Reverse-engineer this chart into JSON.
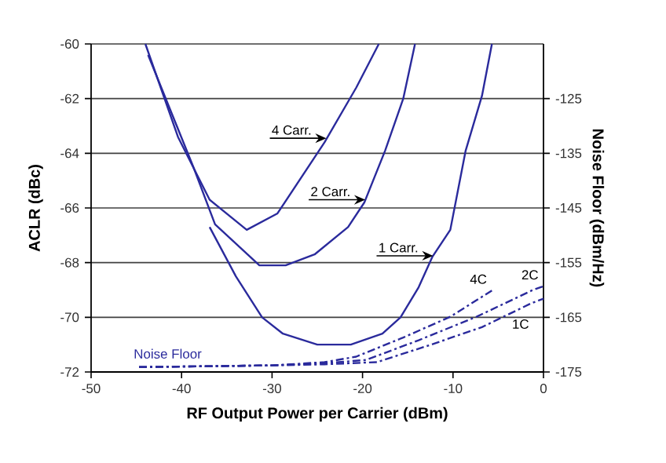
{
  "chart_data": {
    "type": "line",
    "xlabel": "RF Output Power per Carrier (dBm)",
    "ylabel": "ACLR (dBc)",
    "y2label": "Noise Floor (dBm/Hz)",
    "xlim": [
      -50,
      0
    ],
    "xticks": [
      -50,
      -40,
      -30,
      -20,
      -10,
      0
    ],
    "ylim": [
      -72,
      -60
    ],
    "yticks": [
      -72,
      -70,
      -68,
      -66,
      -64,
      -62,
      -60
    ],
    "y2lim": [
      -175,
      -115
    ],
    "y2ticks": [
      -175,
      -165,
      -155,
      -145,
      -135,
      -125
    ],
    "grid": "y",
    "marker": "none",
    "series": [
      {
        "color": "#2a2a9c",
        "line_style": "solid",
        "x": [
          -44.0,
          -40.4,
          -36.9,
          -32.8,
          -29.4,
          -24.2,
          -20.7,
          -18.2
        ],
        "values": [
          -60,
          -63.4,
          -65.7,
          -66.8,
          -66.2,
          -63.6,
          -61.6,
          -60
        ]
      },
      {
        "color": "#2a2a9c",
        "line_style": "solid",
        "x": [
          -43.7,
          -38.7,
          -36.3,
          -31.4,
          -28.5,
          -25.3,
          -21.6,
          -19.8,
          -17.5,
          -15.5,
          -14.2
        ],
        "values": [
          -60.4,
          -64.5,
          -66.6,
          -68.1,
          -68.1,
          -67.7,
          -66.7,
          -65.8,
          -63.9,
          -62.0,
          -60
        ]
      },
      {
        "color": "#2a2a9c",
        "line_style": "solid",
        "x": [
          -36.9,
          -34.0,
          -31.1,
          -28.8,
          -25.0,
          -21.3,
          -17.8,
          -15.8,
          -13.8,
          -12.3,
          -10.3,
          -8.6,
          -6.8,
          -5.7
        ],
        "values": [
          -66.7,
          -68.5,
          -70.0,
          -70.6,
          -71.0,
          -71.0,
          -70.6,
          -70.0,
          -68.9,
          -67.8,
          -66.8,
          -63.9,
          -61.9,
          -60
        ]
      },
      {
        "name": "4C",
        "axis": "y2",
        "color": "#2a2a9c",
        "line_style": "dashed",
        "x": [
          -44.7,
          -30,
          -24.2,
          -20.7,
          -15.5,
          -10.3,
          -5.7
        ],
        "values": [
          -174.1,
          -173.8,
          -173.2,
          -172.2,
          -168.7,
          -164.9,
          -160.1
        ]
      },
      {
        "name": "2C",
        "axis": "y2",
        "color": "#2a2a9c",
        "line_style": "dashed",
        "x": [
          -44.7,
          -30,
          -24.2,
          -19.6,
          -13.8,
          -7.4,
          -1.3,
          0
        ],
        "values": [
          -174.1,
          -173.8,
          -173.4,
          -172.8,
          -169.2,
          -164.9,
          -160.1,
          -159.3
        ]
      },
      {
        "name": "1C",
        "axis": "y2",
        "color": "#2a2a9c",
        "line_style": "dashed",
        "x": [
          -44.7,
          -30,
          -24.2,
          -18.4,
          -12.6,
          -6.8,
          -1.3,
          0
        ],
        "values": [
          -174.1,
          -173.8,
          -173.6,
          -173.2,
          -170.1,
          -166.8,
          -162.4,
          -161.6
        ]
      }
    ],
    "annotations": [
      {
        "text": "4 Carr.",
        "x": -24.0,
        "y": -63.45
      },
      {
        "text": "2 Carr.",
        "x": -19.7,
        "y": -65.7
      },
      {
        "text": "1 Carr.",
        "x": -12.2,
        "y": -67.75
      },
      "Noise Floor"
    ]
  }
}
